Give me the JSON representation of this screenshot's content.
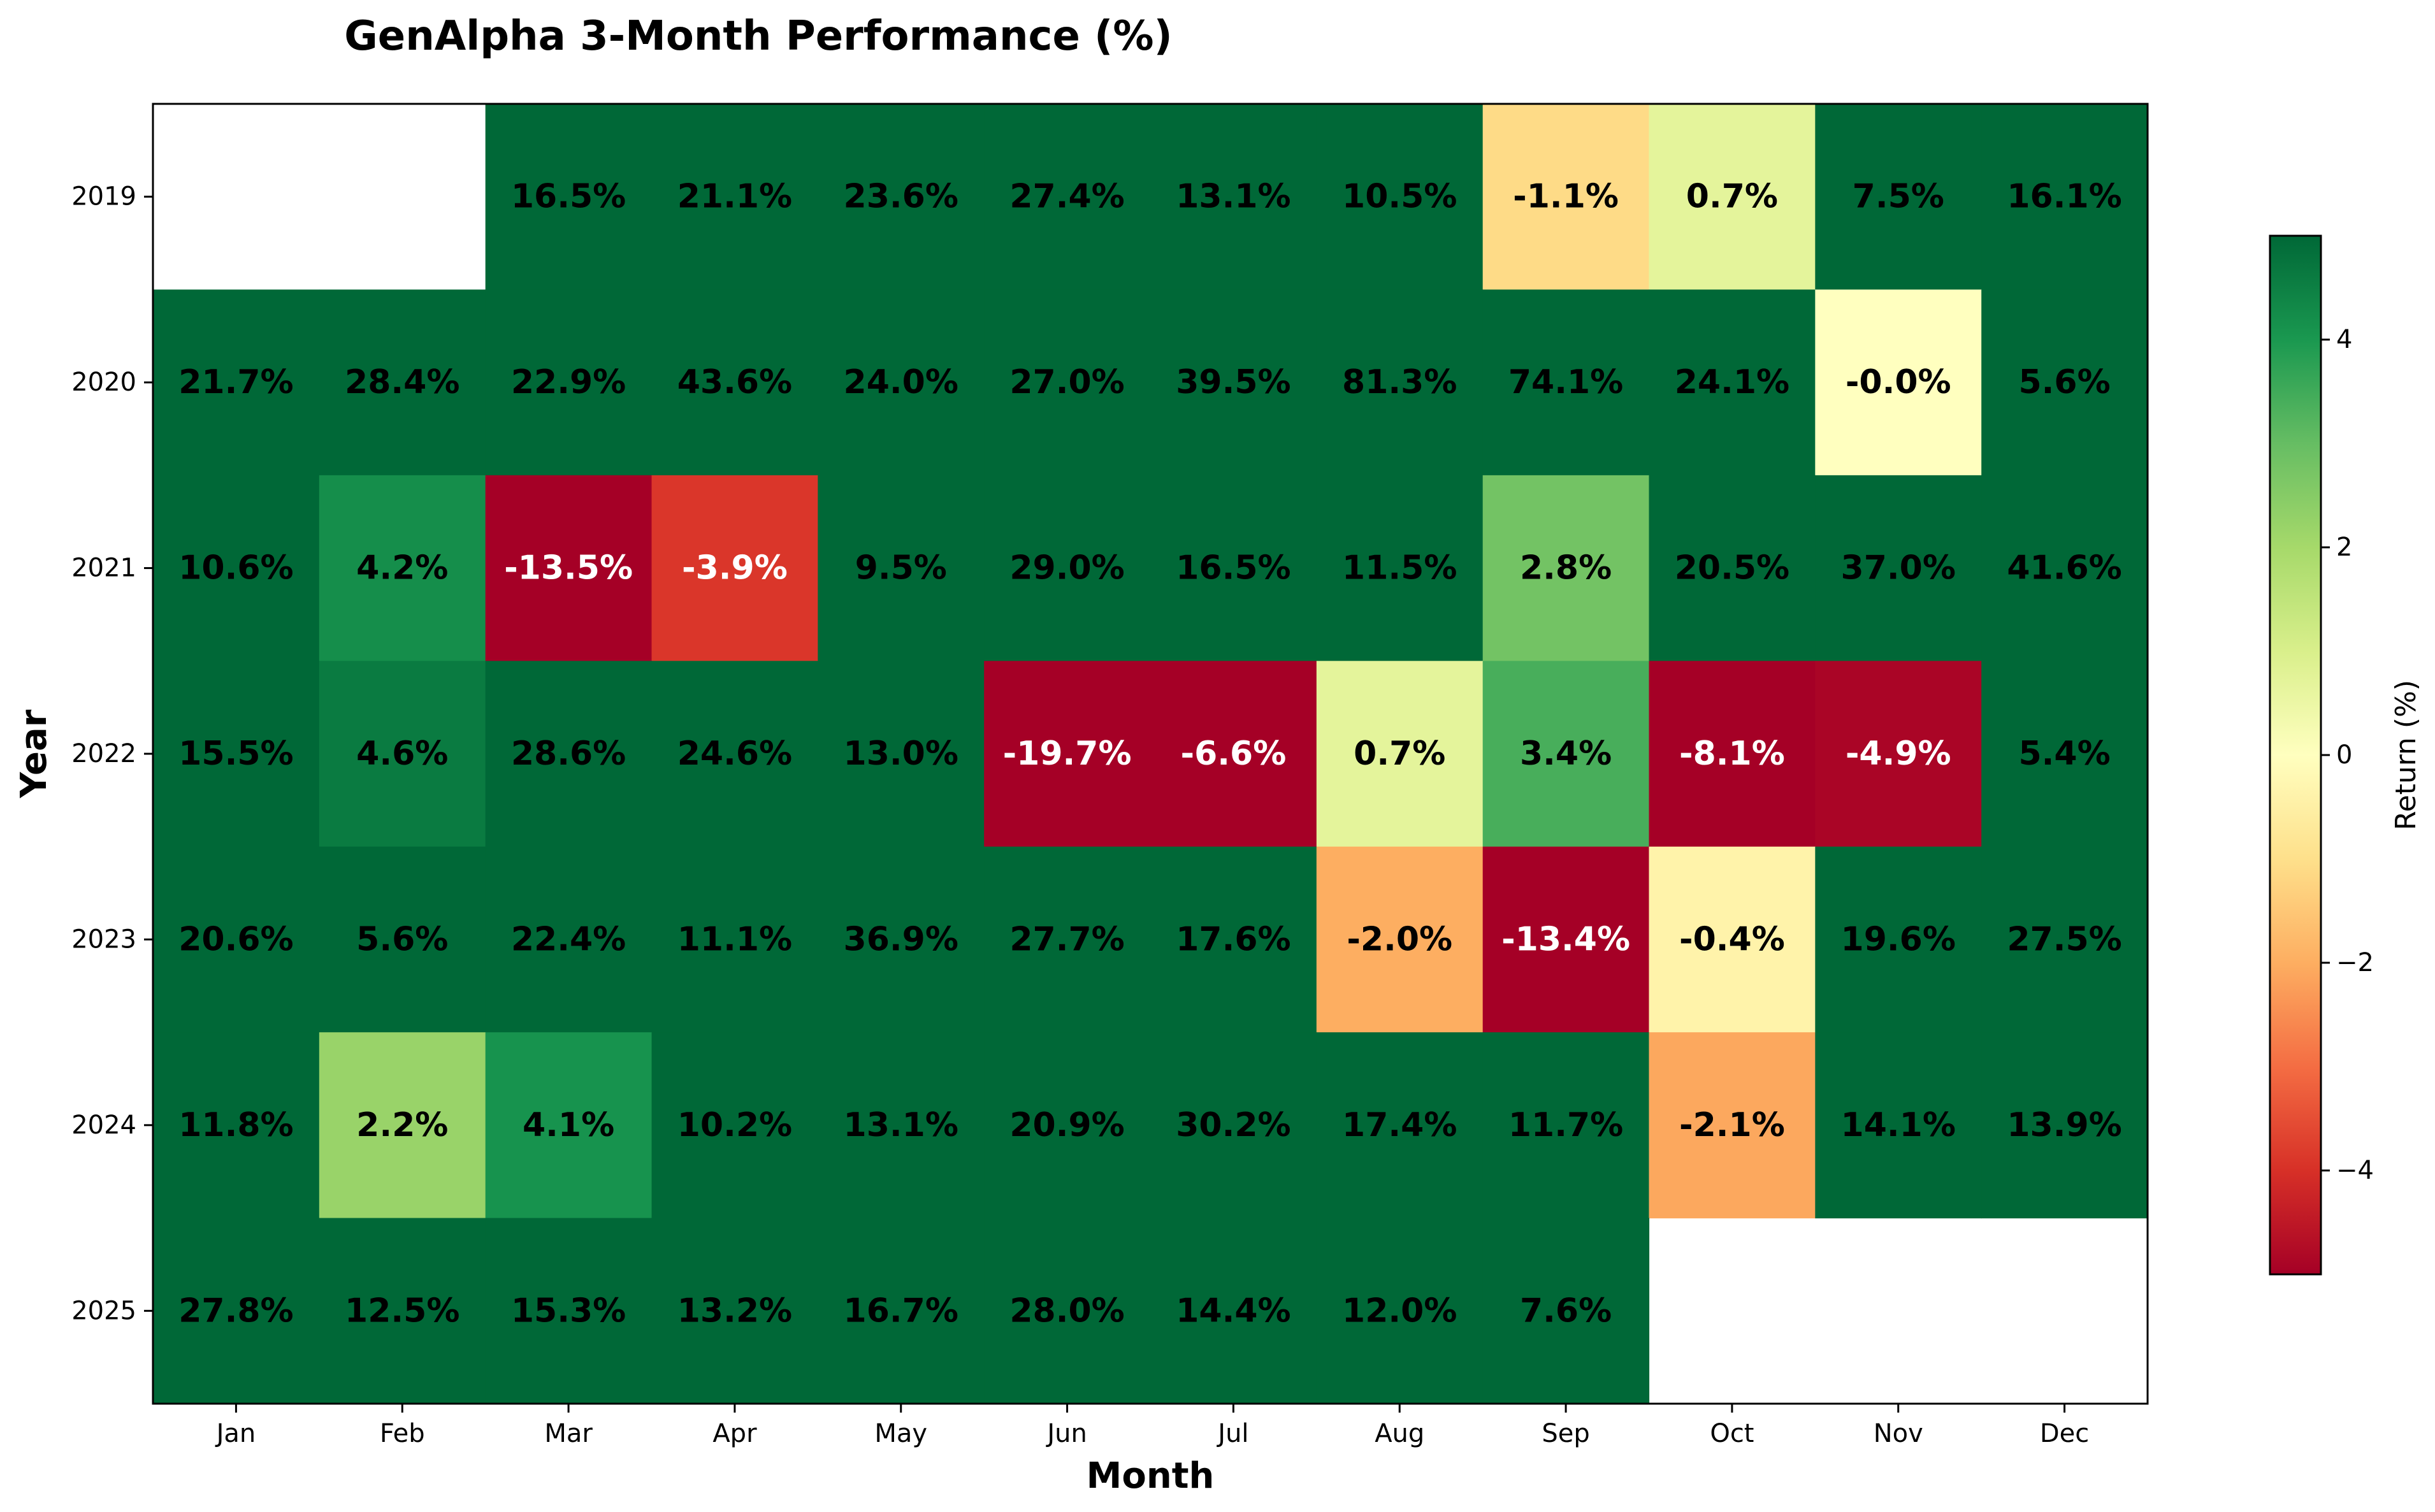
{
  "chart_data": {
    "type": "heatmap",
    "title": "GenAlpha 3-Month Performance (%)",
    "xlabel": "Month",
    "ylabel": "Year",
    "x_categories": [
      "Jan",
      "Feb",
      "Mar",
      "Apr",
      "May",
      "Jun",
      "Jul",
      "Aug",
      "Sep",
      "Oct",
      "Nov",
      "Dec"
    ],
    "y_categories": [
      "2019",
      "2020",
      "2021",
      "2022",
      "2023",
      "2024",
      "2025"
    ],
    "values": [
      [
        null,
        null,
        16.5,
        21.1,
        23.6,
        27.4,
        13.1,
        10.5,
        -1.1,
        0.7,
        7.5,
        16.1
      ],
      [
        21.7,
        28.4,
        22.9,
        43.6,
        24.0,
        27.0,
        39.5,
        81.3,
        74.1,
        24.1,
        -0.0,
        5.6
      ],
      [
        10.6,
        4.2,
        -13.5,
        -3.9,
        9.5,
        29.0,
        16.5,
        11.5,
        2.8,
        20.5,
        37.0,
        41.6
      ],
      [
        15.5,
        4.6,
        28.6,
        24.6,
        13.0,
        -19.7,
        -6.6,
        0.7,
        3.4,
        -8.1,
        -4.9,
        5.4
      ],
      [
        20.6,
        5.6,
        22.4,
        11.1,
        36.9,
        27.7,
        17.6,
        -2.0,
        -13.4,
        -0.4,
        19.6,
        27.5
      ],
      [
        11.8,
        2.2,
        4.1,
        10.2,
        13.1,
        20.9,
        30.2,
        17.4,
        11.7,
        -2.1,
        14.1,
        13.9
      ],
      [
        27.8,
        12.5,
        15.3,
        13.2,
        16.7,
        28.0,
        14.4,
        12.0,
        7.6,
        null,
        null,
        null
      ]
    ],
    "cell_labels": [
      [
        "",
        "",
        "16.5%",
        "21.1%",
        "23.6%",
        "27.4%",
        "13.1%",
        "10.5%",
        "-1.1%",
        "0.7%",
        "7.5%",
        "16.1%"
      ],
      [
        "21.7%",
        "28.4%",
        "22.9%",
        "43.6%",
        "24.0%",
        "27.0%",
        "39.5%",
        "81.3%",
        "74.1%",
        "24.1%",
        "-0.0%",
        "5.6%"
      ],
      [
        "10.6%",
        "4.2%",
        "-13.5%",
        "-3.9%",
        "9.5%",
        "29.0%",
        "16.5%",
        "11.5%",
        "2.8%",
        "20.5%",
        "37.0%",
        "41.6%"
      ],
      [
        "15.5%",
        "4.6%",
        "28.6%",
        "24.6%",
        "13.0%",
        "-19.7%",
        "-6.6%",
        "0.7%",
        "3.4%",
        "-8.1%",
        "-4.9%",
        "5.4%"
      ],
      [
        "20.6%",
        "5.6%",
        "22.4%",
        "11.1%",
        "36.9%",
        "27.7%",
        "17.6%",
        "-2.0%",
        "-13.4%",
        "-0.4%",
        "19.6%",
        "27.5%"
      ],
      [
        "11.8%",
        "2.2%",
        "4.1%",
        "10.2%",
        "13.1%",
        "20.9%",
        "30.2%",
        "17.4%",
        "11.7%",
        "-2.1%",
        "14.1%",
        "13.9%"
      ],
      [
        "27.8%",
        "12.5%",
        "15.3%",
        "13.2%",
        "16.7%",
        "28.0%",
        "14.4%",
        "12.0%",
        "7.6%",
        "",
        "",
        ""
      ]
    ],
    "colormap": "RdYlGn",
    "color_range": [
      -5,
      5
    ],
    "colorbar": {
      "label": "Return (%)",
      "ticks": [
        4,
        2,
        0,
        -2,
        -4
      ],
      "tick_labels": [
        "4",
        "2",
        "0",
        "−2",
        "−4"
      ]
    },
    "colormap_stops": [
      "#a50026",
      "#d73027",
      "#f46d43",
      "#fdae61",
      "#fee08b",
      "#ffffbf",
      "#d9ef8b",
      "#a6d96a",
      "#66bd63",
      "#1a9850",
      "#006837"
    ],
    "label_colors": {
      "dark": "#000000",
      "light": "#ffffff"
    },
    "legend_position": "right",
    "grid": false
  }
}
